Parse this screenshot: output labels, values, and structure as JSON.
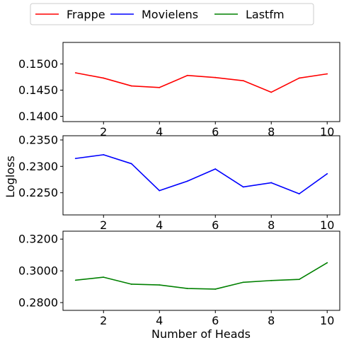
{
  "chart_data": {
    "type": "line",
    "shared_xlabel": "Number of Heads",
    "shared_ylabel": "Logloss",
    "legend": {
      "placement": "top-center",
      "entries": [
        {
          "name": "Frappe",
          "color": "#ff0000"
        },
        {
          "name": "Movielens",
          "color": "#0000ff"
        },
        {
          "name": "Lastfm",
          "color": "#008000"
        }
      ]
    },
    "panels": [
      {
        "series": [
          {
            "name": "Frappe",
            "color": "#ff0000",
            "x": [
              1,
              2,
              3,
              4,
              5,
              6,
              7,
              8,
              9,
              10
            ],
            "y": [
              0.1483,
              0.1473,
              0.1458,
              0.1455,
              0.1478,
              0.1474,
              0.1468,
              0.1446,
              0.1473,
              0.1481
            ]
          }
        ],
        "xlim": [
          0.55,
          10.45
        ],
        "ylim": [
          0.139,
          0.1541
        ],
        "xticks": [
          2,
          4,
          6,
          8,
          10
        ],
        "xticklabels": [
          "2",
          "4",
          "6",
          "8",
          "10"
        ],
        "yticks": [
          0.14,
          0.145,
          0.15
        ],
        "yticklabels": [
          "0.1400",
          "0.1450",
          "0.1500"
        ],
        "grid": false
      },
      {
        "series": [
          {
            "name": "Movielens",
            "color": "#0000ff",
            "x": [
              1,
              2,
              3,
              4,
              5,
              6,
              7,
              8,
              9,
              10
            ],
            "y": [
              0.2315,
              0.2322,
              0.2305,
              0.2254,
              0.2272,
              0.2295,
              0.2261,
              0.2269,
              0.2248,
              0.2286
            ]
          }
        ],
        "xlim": [
          0.55,
          10.45
        ],
        "ylim": [
          0.2208,
          0.2358
        ],
        "xticks": [
          2,
          4,
          6,
          8,
          10
        ],
        "xticklabels": [
          "2",
          "4",
          "6",
          "8",
          "10"
        ],
        "yticks": [
          0.225,
          0.23,
          0.235
        ],
        "yticklabels": [
          "0.2250",
          "0.2300",
          "0.2350"
        ],
        "grid": false
      },
      {
        "series": [
          {
            "name": "Lastfm",
            "color": "#008000",
            "x": [
              1,
              2,
              3,
              4,
              5,
              6,
              7,
              8,
              9,
              10
            ],
            "y": [
              0.2941,
              0.296,
              0.2916,
              0.2911,
              0.2889,
              0.2885,
              0.2928,
              0.2939,
              0.2946,
              0.3051
            ]
          }
        ],
        "xlim": [
          0.55,
          10.45
        ],
        "ylim": [
          0.2751,
          0.325
        ],
        "xticks": [
          2,
          4,
          6,
          8,
          10
        ],
        "xticklabels": [
          "2",
          "4",
          "6",
          "8",
          "10"
        ],
        "yticks": [
          0.28,
          0.3,
          0.32
        ],
        "yticklabels": [
          "0.2800",
          "0.3000",
          "0.3200"
        ],
        "grid": false
      }
    ]
  }
}
